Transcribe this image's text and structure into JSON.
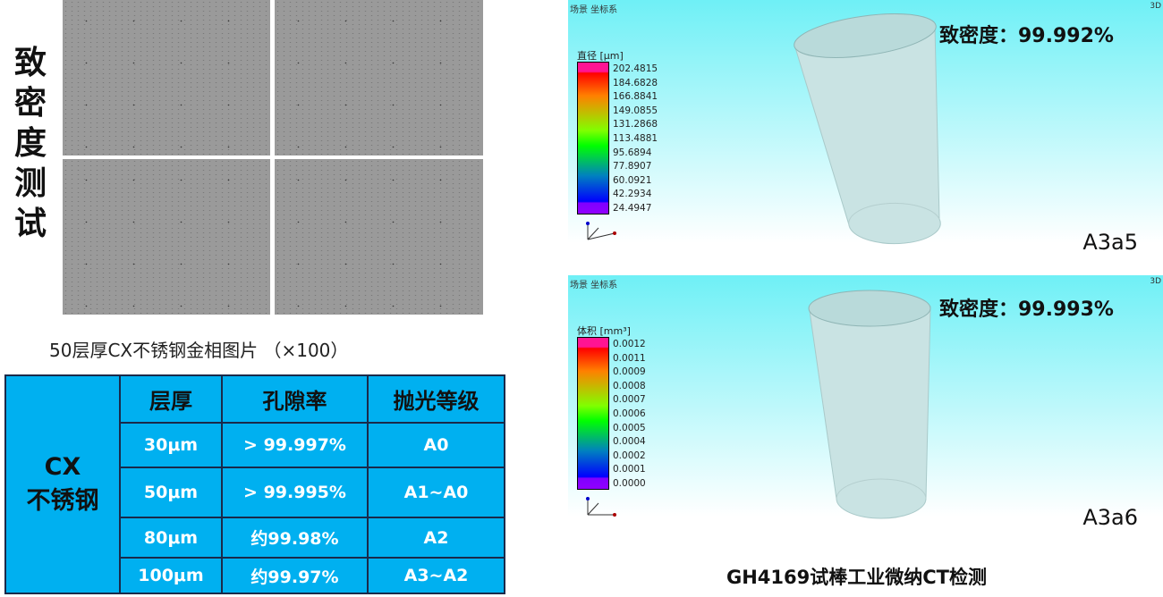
{
  "left": {
    "vertical_title": [
      "致",
      "密",
      "度",
      "测",
      "试"
    ],
    "caption": "50层厚CX不锈钢金相图片 （×100）",
    "table": {
      "material": "CX\n不锈钢",
      "headers": [
        "层厚",
        "孔隙率",
        "抛光等级"
      ],
      "rows": [
        [
          "30μm",
          "> 99.997%",
          "A0"
        ],
        [
          "50μm",
          "> 99.995%",
          "A1~A0"
        ],
        [
          "80μm",
          "约99.98%",
          "A2"
        ],
        [
          "100μm",
          "约99.97%",
          "A3~A2"
        ]
      ]
    }
  },
  "ct": [
    {
      "scene": "场景 坐标系",
      "view": "3D",
      "density": "致密度：99.992%",
      "sample": "A3a5",
      "unit": "直径 [μm]",
      "scale": [
        "202.4815",
        "184.6828",
        "166.8841",
        "149.0855",
        "131.2868",
        "113.4881",
        "95.6894",
        "77.8907",
        "60.0921",
        "42.2934",
        "24.4947"
      ]
    },
    {
      "scene": "场景 坐标系",
      "view": "3D",
      "density": "致密度：99.993%",
      "sample": "A3a6",
      "unit": "体积 [mm³]",
      "scale": [
        "0.0012",
        "0.0011",
        "0.0009",
        "0.0008",
        "0.0007",
        "0.0006",
        "0.0005",
        "0.0004",
        "0.0002",
        "0.0001",
        "0.0000"
      ]
    }
  ],
  "footer": "GH4169试棒工业微纳CT检测"
}
